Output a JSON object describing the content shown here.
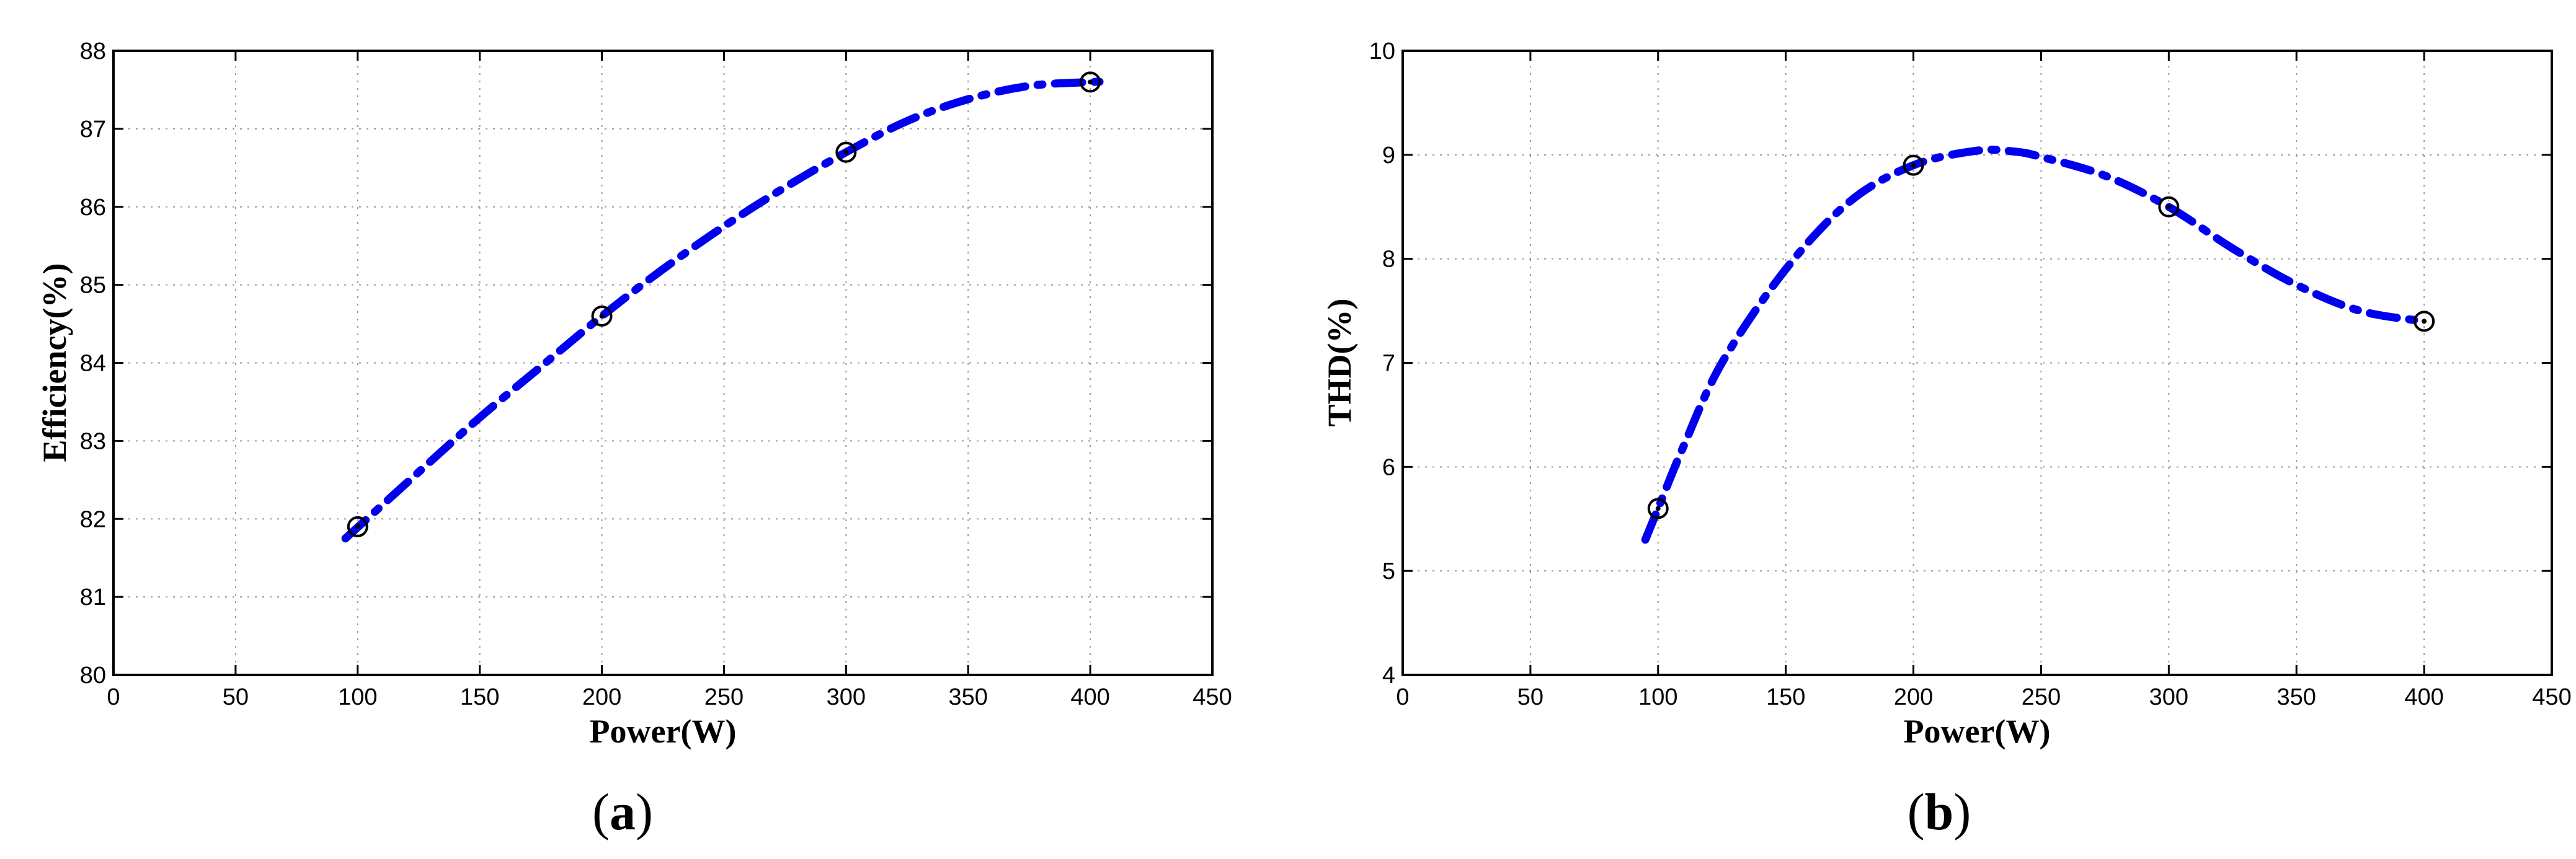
{
  "chart_data": [
    {
      "type": "line",
      "caption_letter": "a",
      "xlabel": "Power(W)",
      "ylabel": "Efficiency(%)",
      "xlim": [
        0,
        450
      ],
      "ylim": [
        80,
        88
      ],
      "xticks": [
        "0",
        "50",
        "100",
        "150",
        "200",
        "250",
        "300",
        "350",
        "400",
        "450"
      ],
      "yticks": [
        "80",
        "81",
        "82",
        "83",
        "84",
        "85",
        "86",
        "87",
        "88"
      ],
      "grid": true,
      "points": {
        "x": [
          100,
          200,
          300,
          400
        ],
        "y": [
          81.9,
          84.6,
          86.7,
          87.6
        ]
      },
      "curve": {
        "x": [
          95,
          125,
          150,
          175,
          200,
          225,
          250,
          275,
          300,
          325,
          350,
          375,
          400,
          405
        ],
        "y": [
          81.75,
          82.6,
          83.3,
          83.95,
          84.6,
          85.2,
          85.75,
          86.25,
          86.7,
          87.1,
          87.38,
          87.55,
          87.6,
          87.6
        ]
      },
      "line_color": "#0000ee",
      "marker_color": "#000000"
    },
    {
      "type": "line",
      "caption_letter": "b",
      "xlabel": "Power(W)",
      "ylabel": "THD(%)",
      "xlim": [
        0,
        450
      ],
      "ylim": [
        4,
        10
      ],
      "xticks": [
        "0",
        "50",
        "100",
        "150",
        "200",
        "250",
        "300",
        "350",
        "400",
        "450"
      ],
      "yticks": [
        "4",
        "5",
        "6",
        "7",
        "8",
        "9",
        "10"
      ],
      "grid": true,
      "points": {
        "x": [
          100,
          200,
          300,
          400
        ],
        "y": [
          5.6,
          8.9,
          8.5,
          7.4
        ]
      },
      "curve": {
        "x": [
          95,
          100,
          110,
          125,
          150,
          175,
          200,
          225,
          240,
          250,
          275,
          300,
          325,
          350,
          375,
          400
        ],
        "y": [
          5.3,
          5.6,
          6.2,
          7.0,
          7.9,
          8.55,
          8.9,
          9.04,
          9.03,
          8.98,
          8.8,
          8.5,
          8.1,
          7.75,
          7.5,
          7.4
        ]
      },
      "line_color": "#0000ee",
      "marker_color": "#000000"
    }
  ]
}
